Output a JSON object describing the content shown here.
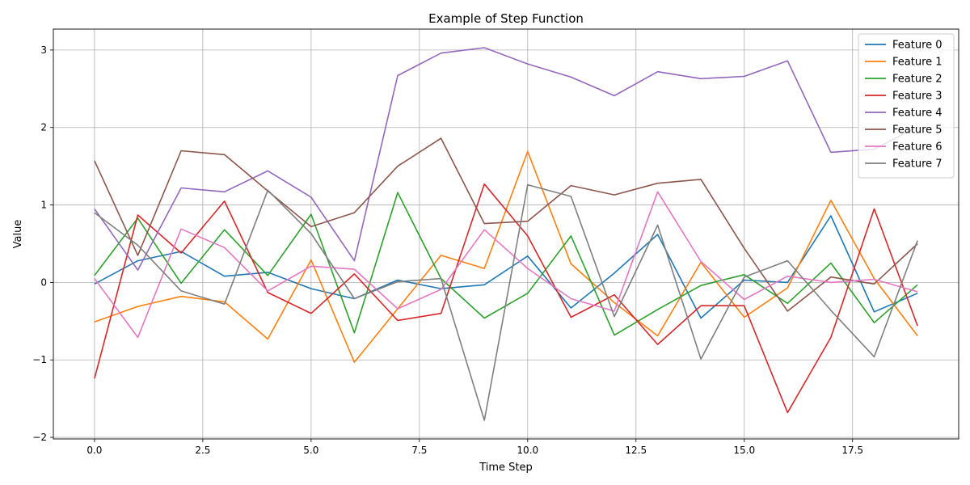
{
  "chart_data": {
    "type": "line",
    "title": "Example of Step Function",
    "xlabel": "Time Step",
    "ylabel": "Value",
    "xlim": [
      -0.95,
      19.95
    ],
    "ylim": [
      -2.02,
      3.27
    ],
    "grid": true,
    "legend_position": "top-right",
    "x": [
      0,
      1,
      2,
      3,
      4,
      5,
      6,
      7,
      8,
      9,
      10,
      11,
      12,
      13,
      14,
      15,
      16,
      17,
      18,
      19
    ],
    "xticks": [
      {
        "value": 0,
        "label": "0.0"
      },
      {
        "value": 2.5,
        "label": "2.5"
      },
      {
        "value": 5,
        "label": "5.0"
      },
      {
        "value": 7.5,
        "label": "7.5"
      },
      {
        "value": 10,
        "label": "10.0"
      },
      {
        "value": 12.5,
        "label": "12.5"
      },
      {
        "value": 15,
        "label": "15.0"
      },
      {
        "value": 17.5,
        "label": "17.5"
      }
    ],
    "yticks": [
      {
        "value": -2,
        "label": "−2"
      },
      {
        "value": -1,
        "label": "−1"
      },
      {
        "value": 0,
        "label": "0"
      },
      {
        "value": 1,
        "label": "1"
      },
      {
        "value": 2,
        "label": "2"
      },
      {
        "value": 3,
        "label": "3"
      }
    ],
    "series": [
      {
        "name": "Feature 0",
        "color": "#1f77b4",
        "values": [
          -0.02,
          0.28,
          0.4,
          0.08,
          0.13,
          -0.08,
          -0.21,
          0.03,
          -0.08,
          -0.03,
          0.34,
          -0.33,
          0.12,
          0.62,
          -0.46,
          0.03,
          0.0,
          0.86,
          -0.38,
          -0.14
        ]
      },
      {
        "name": "Feature 1",
        "color": "#ff7f0e",
        "values": [
          -0.51,
          -0.31,
          -0.18,
          -0.25,
          -0.73,
          0.29,
          -1.03,
          -0.34,
          0.35,
          0.18,
          1.69,
          0.24,
          -0.26,
          -0.69,
          0.26,
          -0.45,
          -0.07,
          1.06,
          0.05,
          -0.69
        ]
      },
      {
        "name": "Feature 2",
        "color": "#2ca02c",
        "values": [
          0.09,
          0.83,
          -0.01,
          0.68,
          0.09,
          0.88,
          -0.65,
          1.16,
          0.05,
          -0.46,
          -0.14,
          0.6,
          -0.68,
          -0.35,
          -0.04,
          0.1,
          -0.27,
          0.25,
          -0.52,
          -0.03
        ]
      },
      {
        "name": "Feature 3",
        "color": "#d62728",
        "values": [
          -1.24,
          0.87,
          0.38,
          1.05,
          -0.13,
          -0.4,
          0.11,
          -0.49,
          -0.4,
          1.27,
          0.6,
          -0.45,
          -0.16,
          -0.8,
          -0.3,
          -0.3,
          -1.68,
          -0.71,
          0.95,
          -0.56
        ]
      },
      {
        "name": "Feature 4",
        "color": "#9467bd",
        "values": [
          0.95,
          0.16,
          1.22,
          1.17,
          1.44,
          1.1,
          0.28,
          2.67,
          2.96,
          3.03,
          2.82,
          2.65,
          2.41,
          2.72,
          2.63,
          2.66,
          2.86,
          1.68,
          1.72,
          2.01
        ]
      },
      {
        "name": "Feature 5",
        "color": "#8c564b",
        "values": [
          1.57,
          0.35,
          1.7,
          1.65,
          1.18,
          0.72,
          0.9,
          1.5,
          1.86,
          0.76,
          0.79,
          1.25,
          1.13,
          1.28,
          1.33,
          0.44,
          -0.37,
          0.07,
          -0.02,
          0.5
        ]
      },
      {
        "name": "Feature 6",
        "color": "#e377c2",
        "values": [
          0.05,
          -0.71,
          0.69,
          0.45,
          -0.11,
          0.21,
          0.17,
          -0.34,
          -0.09,
          0.68,
          0.18,
          -0.21,
          -0.37,
          1.17,
          0.27,
          -0.22,
          0.08,
          0.0,
          0.04,
          -0.12
        ]
      },
      {
        "name": "Feature 7",
        "color": "#7f7f7f",
        "values": [
          0.9,
          0.48,
          -0.11,
          -0.28,
          1.19,
          0.63,
          -0.21,
          0.01,
          0.05,
          -1.78,
          1.26,
          1.11,
          -0.44,
          0.74,
          -0.99,
          0.07,
          0.28,
          -0.36,
          -0.96,
          0.54
        ]
      }
    ]
  }
}
